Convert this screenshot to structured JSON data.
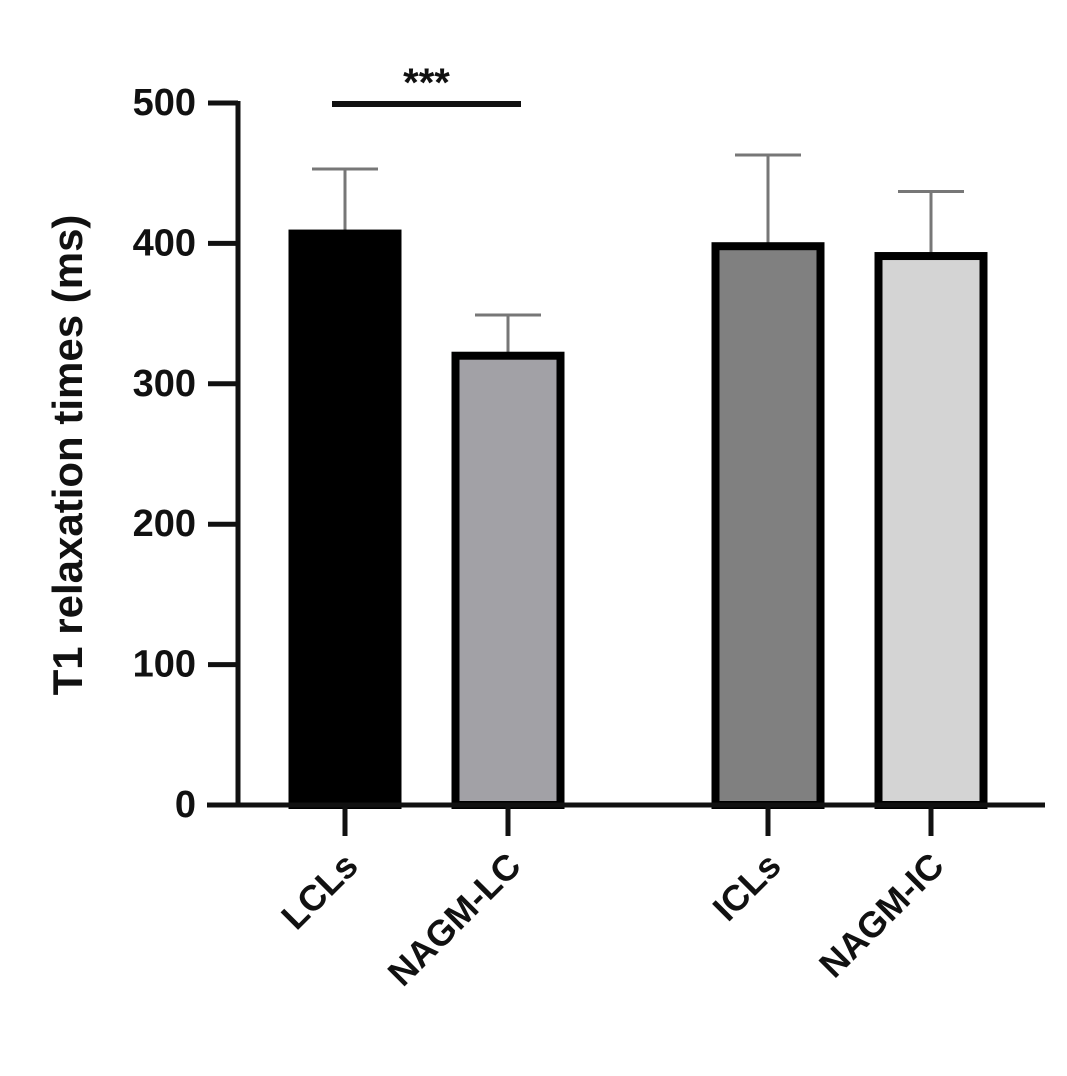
{
  "chart_data": {
    "type": "bar",
    "ylabel": "T1 relaxation times (ms)",
    "categories": [
      "LCLs",
      "NAGM-LC",
      "ICLs",
      "NAGM-IC"
    ],
    "values": [
      407,
      320,
      398,
      391
    ],
    "errors": [
      46,
      29,
      65,
      46
    ],
    "colors": [
      "#000000",
      "#a2a1a6",
      "#808080",
      "#d4d4d4"
    ],
    "ylim": [
      0,
      500
    ],
    "yticks": [
      0,
      100,
      200,
      300,
      400,
      500
    ],
    "annotation": "***"
  }
}
